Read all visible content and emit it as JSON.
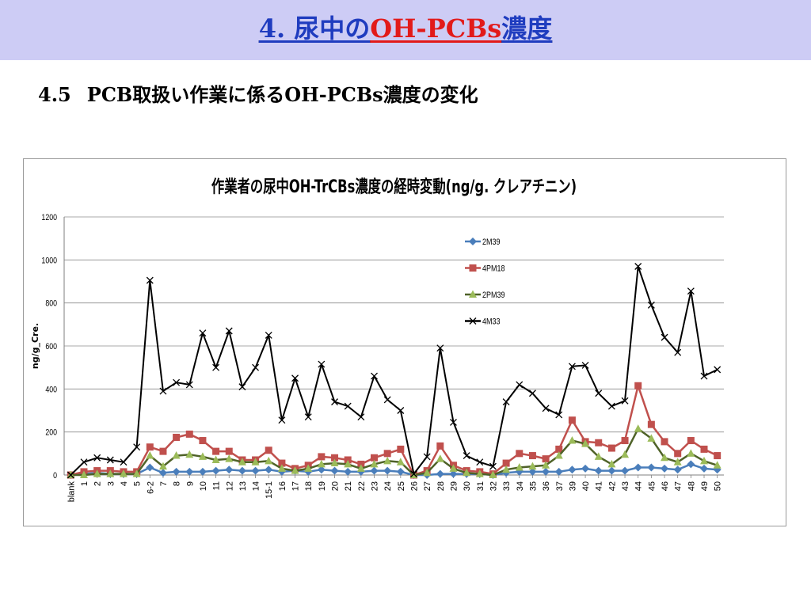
{
  "header": {
    "title_prefix": "4. 尿中の",
    "title_highlight": "OH-PCBs",
    "title_suffix": "濃度"
  },
  "section": {
    "number": "4.5",
    "title": "PCB取扱い作業に係るOH-PCBs濃度の変化"
  },
  "chart_data": {
    "type": "line",
    "title": "作業者の尿中OH-TrCBs濃度の経時変動(ng/g. クレアチニン)",
    "xlabel": "",
    "ylabel": "ng/g_Cre.",
    "ylim": [
      0,
      1200
    ],
    "yticks": [
      0,
      200,
      400,
      600,
      800,
      1000,
      1200
    ],
    "grid": true,
    "legend_position": "top-right",
    "categories": [
      "blank",
      "1",
      "2",
      "3",
      "4",
      "5",
      "6-2",
      "7",
      "8",
      "9",
      "10",
      "11",
      "12",
      "13",
      "14",
      "15-1",
      "16",
      "17",
      "18",
      "19",
      "20",
      "21",
      "22",
      "23",
      "24",
      "25",
      "26",
      "27",
      "28",
      "29",
      "30",
      "31",
      "32",
      "33",
      "34",
      "35",
      "36",
      "37",
      "39",
      "40",
      "41",
      "42",
      "43",
      "44",
      "45",
      "46",
      "47",
      "48",
      "49",
      "50"
    ],
    "series": [
      {
        "name": "2M39",
        "color": "#4a7ebb",
        "marker": "diamond",
        "values": [
          0,
          5,
          10,
          5,
          5,
          5,
          35,
          10,
          15,
          15,
          15,
          20,
          25,
          20,
          20,
          25,
          15,
          20,
          15,
          25,
          20,
          15,
          15,
          20,
          20,
          15,
          0,
          0,
          5,
          5,
          5,
          5,
          0,
          10,
          15,
          15,
          15,
          15,
          25,
          30,
          20,
          20,
          20,
          35,
          35,
          30,
          25,
          50,
          30,
          25
        ]
      },
      {
        "name": "4PM18",
        "color": "#c0504d",
        "marker": "square",
        "values": [
          0,
          15,
          20,
          20,
          15,
          15,
          130,
          110,
          175,
          190,
          160,
          110,
          110,
          70,
          70,
          115,
          55,
          30,
          45,
          85,
          80,
          70,
          50,
          80,
          100,
          120,
          0,
          20,
          135,
          45,
          20,
          15,
          5,
          55,
          100,
          90,
          75,
          120,
          255,
          155,
          150,
          125,
          160,
          415,
          235,
          155,
          100,
          160,
          120,
          90
        ]
      },
      {
        "name": "2PM39",
        "color": "#4f6228",
        "marker": "triangle",
        "markerColor": "#9bbb59",
        "values": [
          0,
          0,
          5,
          5,
          5,
          5,
          90,
          40,
          90,
          95,
          85,
          70,
          75,
          60,
          60,
          65,
          30,
          20,
          30,
          50,
          55,
          50,
          30,
          50,
          65,
          60,
          0,
          10,
          75,
          30,
          10,
          5,
          0,
          25,
          35,
          40,
          45,
          90,
          160,
          145,
          85,
          50,
          95,
          215,
          170,
          80,
          60,
          100,
          65,
          45
        ]
      },
      {
        "name": "4M33",
        "color": "#000000",
        "marker": "x",
        "values": [
          0,
          60,
          80,
          70,
          60,
          130,
          905,
          390,
          430,
          420,
          660,
          500,
          670,
          410,
          500,
          650,
          255,
          450,
          270,
          515,
          340,
          320,
          270,
          460,
          350,
          300,
          5,
          85,
          590,
          245,
          90,
          60,
          40,
          340,
          420,
          380,
          310,
          280,
          505,
          510,
          380,
          320,
          345,
          970,
          790,
          640,
          570,
          855,
          460,
          490
        ]
      }
    ]
  }
}
